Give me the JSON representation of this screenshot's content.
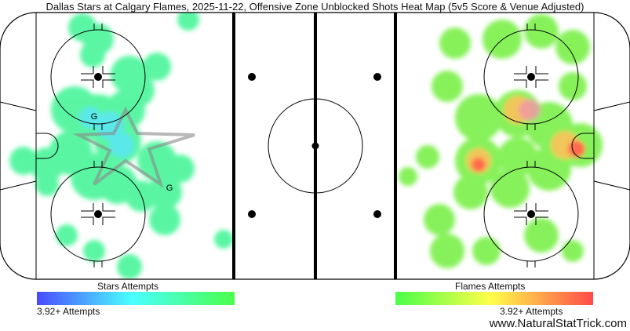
{
  "title": "Dallas Stars at Calgary Flames, 2025-11-22, Offensive Zone Unblocked Shots Heat Map (5v5 Score & Venue Adjusted)",
  "chart_data": {
    "type": "heatmap",
    "title": "Dallas Stars at Calgary Flames, 2025-11-22, Offensive Zone Unblocked Shots Heat Map (5v5 Score & Venue Adjusted)",
    "grid": false,
    "left_zone_team": "Dallas Stars",
    "right_zone_team": "Calgary Flames",
    "goal_marker": "G",
    "goals": [
      {
        "team": "Stars",
        "label": "G"
      },
      {
        "team": "Stars",
        "label": "G"
      }
    ],
    "legends": [
      {
        "title": "Stars Attempts",
        "max_label": "3.92+ Attempts",
        "colors": [
          "#4a4aff",
          "#4affff",
          "#4aff4a"
        ],
        "placement": "bottom-left"
      },
      {
        "title": "Flames Attempts",
        "max_label": "3.92+ Attempts",
        "colors": [
          "#4aff4a",
          "#ffff4a",
          "#ff4a4a"
        ],
        "placement": "bottom-right"
      }
    ]
  },
  "legend": {
    "stars_title": "Stars Attempts",
    "stars_max": "3.92+ Attempts",
    "flames_title": "Flames Attempts",
    "flames_max": "3.92+ Attempts"
  },
  "source": "www.NaturalStatTrick.com"
}
